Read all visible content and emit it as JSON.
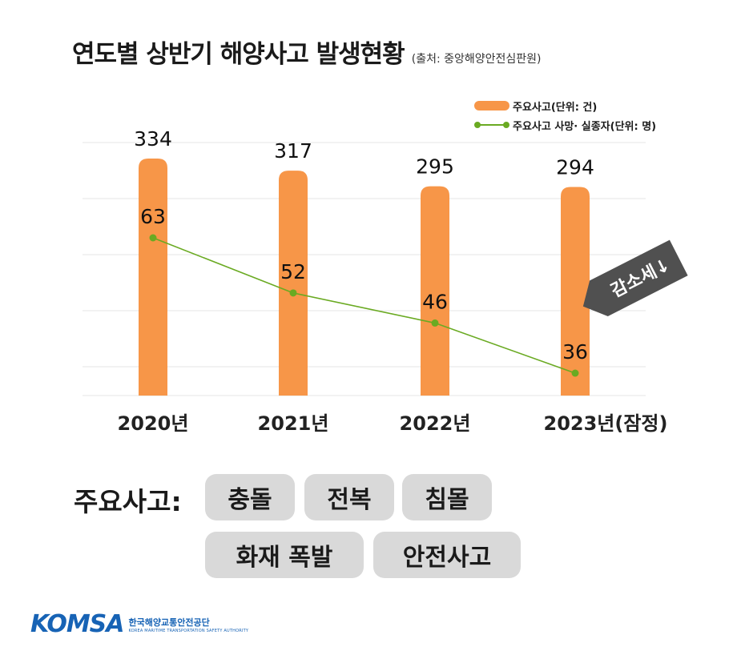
{
  "title": "연도별 상반기 해양사고 발생현황",
  "source": "(출처: 중앙해양안전심판원)",
  "legend": {
    "bar": "주요사고(단위: 건)",
    "line": "주요사고 사망· 실종자(단위: 명)"
  },
  "badge": "감소세↓",
  "colors": {
    "bar": "#f79648",
    "line": "#6aaa22",
    "badge": "#505050",
    "pill": "#d9d9d9",
    "logo": "#1763b5"
  },
  "chart_data": {
    "type": "bar",
    "categories": [
      "2020년",
      "2021년",
      "2022년",
      "2023년(잠정)"
    ],
    "series": [
      {
        "name": "주요사고(단위: 건)",
        "type": "bar",
        "values": [
          334,
          317,
          295,
          294
        ]
      },
      {
        "name": "주요사고 사망· 실종자(단위: 명)",
        "type": "line",
        "values": [
          63,
          52,
          46,
          36
        ]
      }
    ],
    "grid": true
  },
  "accidents": {
    "label": "주요사고:",
    "items": [
      "충돌",
      "전복",
      "침몰",
      "화재 폭발",
      "안전사고"
    ]
  },
  "logo": {
    "mark": "KOMSA",
    "name_ko": "한국해양교통안전공단",
    "name_en": "KOREA MARITIME TRANSPORTATION SAFETY AUTHORITY"
  }
}
